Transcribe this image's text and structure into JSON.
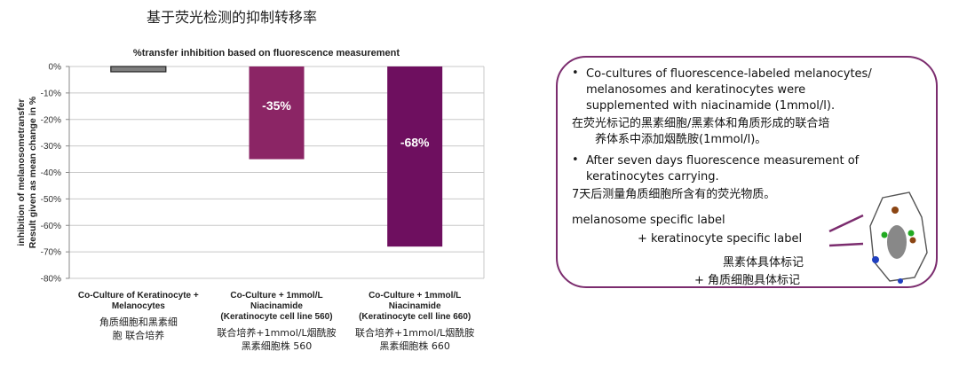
{
  "page_title": "基于荧光检测的抑制转移率",
  "chart_data": {
    "type": "bar",
    "title": "%transfer inhibition based on fluorescence measurement",
    "ylabel_line1": "inhibition of melanosometransfer",
    "ylabel_line2": "Result given as mean change in %",
    "ylim": [
      -80,
      0
    ],
    "yticks": [
      0,
      -10,
      -20,
      -30,
      -40,
      -50,
      -60,
      -70,
      -80
    ],
    "ytick_labels": [
      "0%",
      "-10%",
      "-20%",
      "-30%",
      "-40%",
      "-50%",
      "-60%",
      "-70%",
      "-80%"
    ],
    "grid": true,
    "categories": [
      "Co-Culture of Keratinocyte + Melanocytes",
      "Co-Culture + 1mmol/L Niacinamide (Keratinocyte cell line 560)",
      "Co-Culture + 1mmol/L Niacinamide (Keratinocyte cell line 660)"
    ],
    "category_lines": [
      [
        "Co-Culture of Keratinocyte +",
        "Melanocytes"
      ],
      [
        "Co-Culture + 1mmol/L",
        "Niacinamide",
        "(Keratinocyte cell line 560)"
      ],
      [
        "Co-Culture + 1mmol/L",
        "Niacinamide",
        "(Keratinocyte cell line 660)"
      ]
    ],
    "categories_cn": [
      "角质细胞和黑素细\n胞 联合培养",
      "联合培养+1mmol/L烟酰胺\n黑素细胞株 560",
      "联合培养+1mmol/L烟酰胺\n黑素细胞株 660"
    ],
    "values": [
      -2,
      -35,
      -68
    ],
    "data_labels": [
      "",
      "-35%",
      "-68%"
    ],
    "colors": [
      "#7f7f7f",
      "#8b2565",
      "#6e0f5f"
    ]
  },
  "info": {
    "bullet_char": "•",
    "bullet1_lines": [
      "Co-cultures of fluorescence-labeled melanocytes/",
      "melanosomes and keratinocytes were",
      "supplemented with niacinamide (1mmol/l)."
    ],
    "cn1_lines": [
      "在荧光标记的黑素细胞/黑素体和角质形成的联合培",
      "养体系中添加烟酰胺(1mmol/l)。"
    ],
    "bullet2_lines": [
      "After seven days fluorescence measurement of",
      "keratinocytes carrying."
    ],
    "cn2": "7天后测量角质细胞所含有的荧光物质。",
    "label_en_1": "melanosome specific label",
    "label_en_2": "+ keratinocyte specific label",
    "label_cn_1": "黑素体具体标记",
    "label_cn_2": "+ 角质细胞具体标记",
    "border_color": "#7b2c6e",
    "cell_icon": "keratinocyte-cell-icon"
  }
}
